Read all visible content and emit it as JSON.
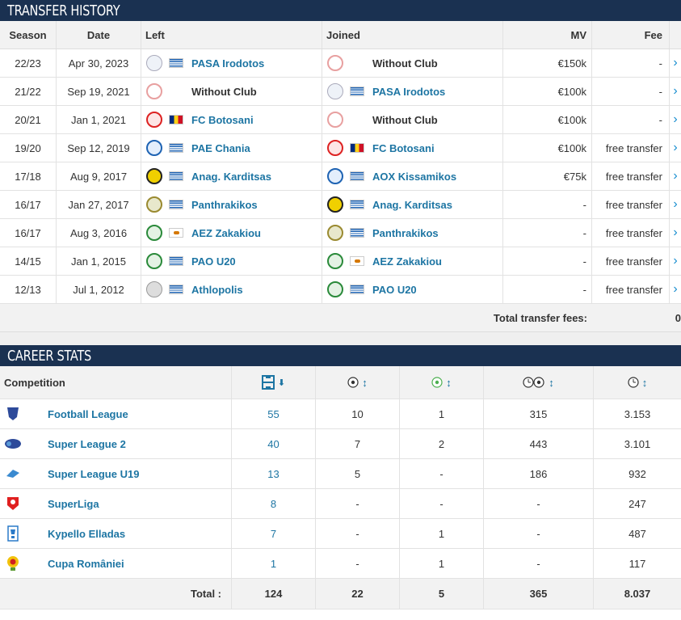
{
  "transfer_history": {
    "title": "TRANSFER HISTORY",
    "headers": {
      "season": "Season",
      "date": "Date",
      "left": "Left",
      "joined": "Joined",
      "mv": "MV",
      "fee": "Fee"
    },
    "rows": [
      {
        "season": "22/23",
        "date": "Apr 30, 2023",
        "left": "PASA Irodotos",
        "joined": "Without Club",
        "mv": "€150k",
        "fee": "-"
      },
      {
        "season": "21/22",
        "date": "Sep 19, 2021",
        "left": "Without Club",
        "joined": "PASA Irodotos",
        "mv": "€100k",
        "fee": "-"
      },
      {
        "season": "20/21",
        "date": "Jan 1, 2021",
        "left": "FC Botosani",
        "joined": "Without Club",
        "mv": "€100k",
        "fee": "-"
      },
      {
        "season": "19/20",
        "date": "Sep 12, 2019",
        "left": "PAE Chania",
        "joined": "FC Botosani",
        "mv": "€100k",
        "fee": "free transfer"
      },
      {
        "season": "17/18",
        "date": "Aug 9, 2017",
        "left": "Anag. Karditsas",
        "joined": "AOX Kissamikos",
        "mv": "€75k",
        "fee": "free transfer"
      },
      {
        "season": "16/17",
        "date": "Jan 27, 2017",
        "left": "Panthrakikos",
        "joined": "Anag. Karditsas",
        "mv": "-",
        "fee": "free transfer"
      },
      {
        "season": "16/17",
        "date": "Aug 3, 2016",
        "left": "AEZ Zakakiou",
        "joined": "Panthrakikos",
        "mv": "-",
        "fee": "free transfer"
      },
      {
        "season": "14/15",
        "date": "Jan 1, 2015",
        "left": "PAO U20",
        "joined": "AEZ Zakakiou",
        "mv": "-",
        "fee": "free transfer"
      },
      {
        "season": "12/13",
        "date": "Jul 1, 2012",
        "left": "Athlopolis",
        "joined": "PAO U20",
        "mv": "-",
        "fee": "free transfer"
      }
    ],
    "total_label": "Total transfer fees:",
    "total_value": "0"
  },
  "career_stats": {
    "title": "CAREER STATS",
    "headers": {
      "competition": "Competition"
    },
    "rows": [
      {
        "competition": "Football League",
        "apps": "55",
        "goals": "10",
        "assists": "1",
        "mpg": "315",
        "minutes": "3.153"
      },
      {
        "competition": "Super League 2",
        "apps": "40",
        "goals": "7",
        "assists": "2",
        "mpg": "443",
        "minutes": "3.101"
      },
      {
        "competition": "Super League U19",
        "apps": "13",
        "goals": "5",
        "assists": "-",
        "mpg": "186",
        "minutes": "932"
      },
      {
        "competition": "SuperLiga",
        "apps": "8",
        "goals": "-",
        "assists": "-",
        "mpg": "-",
        "minutes": "247"
      },
      {
        "competition": "Kypello Elladas",
        "apps": "7",
        "goals": "-",
        "assists": "1",
        "mpg": "-",
        "minutes": "487"
      },
      {
        "competition": "Cupa României",
        "apps": "1",
        "goals": "-",
        "assists": "1",
        "mpg": "-",
        "minutes": "117"
      }
    ],
    "total": {
      "label": "Total :",
      "apps": "124",
      "goals": "22",
      "assists": "5",
      "mpg": "365",
      "minutes": "8.037"
    }
  },
  "colors": {
    "header_bg": "#1a3151",
    "link": "#1d75a3",
    "row_border": "#e2e2e2",
    "head_bg": "#f2f2f2"
  }
}
